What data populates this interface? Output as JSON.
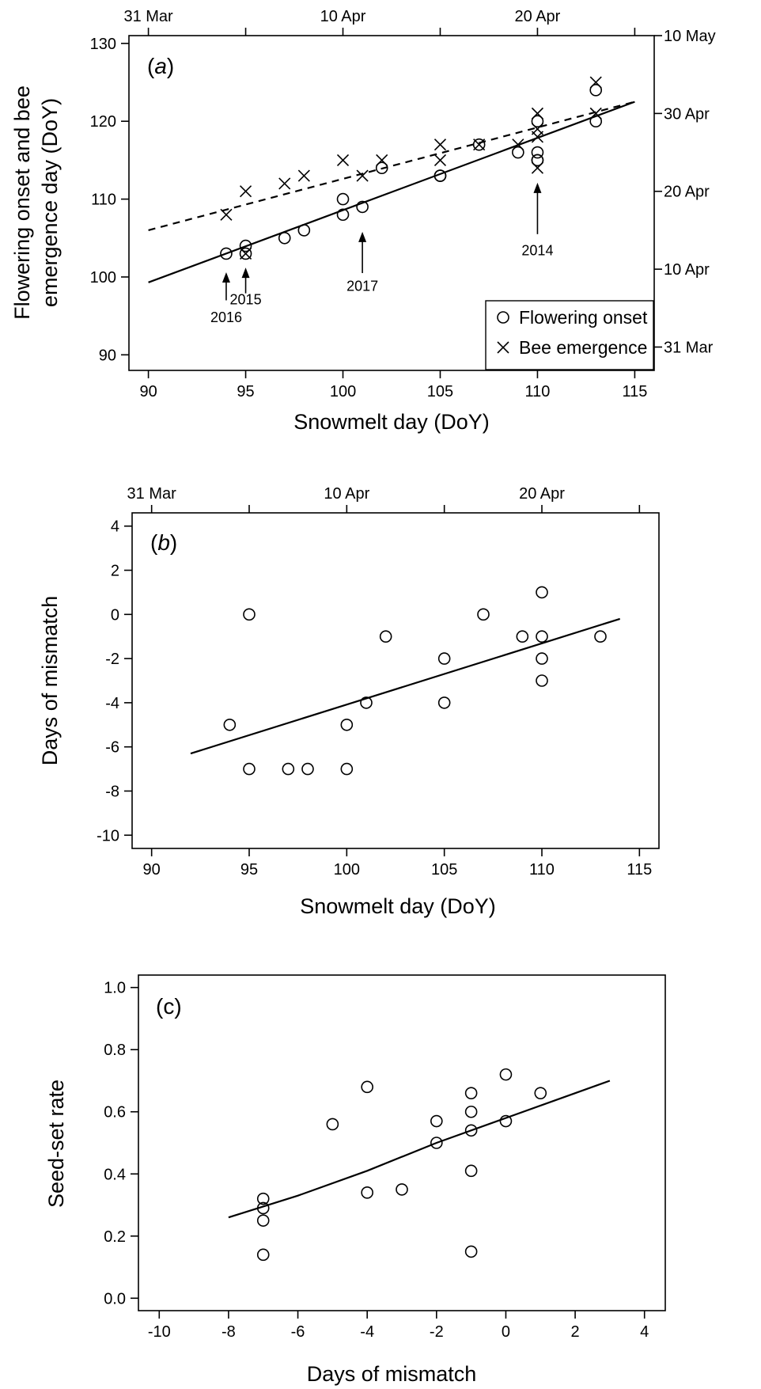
{
  "chart_data": [
    {
      "type": "scatter",
      "panel_label": "(a)",
      "panel_letter": "a",
      "xlabel": "Snowmelt day (DoY)",
      "ylabel": [
        "Flowering onset and bee",
        "emergence day (DoY)"
      ],
      "xlim": [
        89,
        116
      ],
      "ylim": [
        88,
        131
      ],
      "x_ticks": [
        90,
        95,
        100,
        105,
        110,
        115
      ],
      "y_ticks": [
        90,
        100,
        110,
        120,
        130
      ],
      "top_axis": {
        "ticks": [
          90,
          95,
          100,
          105,
          110,
          115
        ],
        "labels": [
          {
            "x": 90,
            "text": "31 Mar"
          },
          {
            "x": 100,
            "text": "10 Apr"
          },
          {
            "x": 110,
            "text": "20 Apr"
          }
        ]
      },
      "right_axis": {
        "ticks": [
          {
            "y": 91,
            "text": "31 Mar"
          },
          {
            "y": 101,
            "text": "10 Apr"
          },
          {
            "y": 111,
            "text": "20 Apr"
          },
          {
            "y": 121,
            "text": "30 Apr"
          },
          {
            "y": 131,
            "text": "10 May"
          }
        ]
      },
      "legend": {
        "position": "bottom-right",
        "entries": [
          "Flowering onset",
          "Bee emergence"
        ]
      },
      "series": [
        {
          "name": "Flowering onset",
          "marker": "circle",
          "x": [
            94,
            95,
            95,
            97,
            98,
            100,
            100,
            101,
            102,
            105,
            105,
            107,
            109,
            110,
            110,
            110,
            110,
            113,
            113
          ],
          "y": [
            103,
            104,
            103,
            105,
            106,
            108,
            110,
            109,
            114,
            113,
            113,
            117,
            116,
            115,
            116,
            120,
            115,
            120,
            124
          ]
        },
        {
          "name": "Bee emergence",
          "marker": "cross",
          "x": [
            94,
            95,
            95,
            97,
            98,
            100,
            101,
            102,
            105,
            105,
            107,
            109,
            110,
            110,
            110,
            110,
            113,
            113
          ],
          "y": [
            108,
            111,
            103,
            112,
            113,
            115,
            113,
            115,
            117,
            115,
            117,
            117,
            118,
            119,
            121,
            114,
            121,
            125
          ]
        }
      ],
      "fits": [
        {
          "series": "Flowering onset",
          "style": "solid",
          "x": [
            90,
            115
          ],
          "y": [
            99.3,
            122.5
          ]
        },
        {
          "series": "Bee emergence",
          "style": "dashed",
          "x": [
            90,
            115
          ],
          "y": [
            106,
            122.5
          ]
        }
      ],
      "annotations": [
        {
          "text": "2016",
          "x": 94,
          "y_tip": 100.6,
          "y_tail": 97,
          "label_y": 94.2
        },
        {
          "text": "2015",
          "x": 95,
          "y_tip": 101.2,
          "y_tail": 97.9,
          "label_y": 96.5
        },
        {
          "text": "2017",
          "x": 101,
          "y_tip": 105.8,
          "y_tail": 100.5,
          "label_y": 98.2
        },
        {
          "text": "2014",
          "x": 110,
          "y_tip": 112.1,
          "y_tail": 105.5,
          "label_y": 102.8
        }
      ]
    },
    {
      "type": "scatter",
      "panel_label": "(b)",
      "panel_letter": "b",
      "xlabel": "Snowmelt day (DoY)",
      "ylabel": [
        "Days of mismatch"
      ],
      "xlim": [
        89,
        116
      ],
      "ylim": [
        -10.6,
        4.6
      ],
      "x_ticks": [
        90,
        95,
        100,
        105,
        110,
        115
      ],
      "y_ticks": [
        -10,
        -8,
        -6,
        -4,
        -2,
        0,
        2,
        4
      ],
      "top_axis": {
        "ticks": [
          90,
          95,
          100,
          105,
          110,
          115
        ],
        "labels": [
          {
            "x": 90,
            "text": "31 Mar"
          },
          {
            "x": 100,
            "text": "10 Apr"
          },
          {
            "x": 110,
            "text": "20 Apr"
          }
        ]
      },
      "series": [
        {
          "name": "",
          "marker": "circle",
          "x": [
            94,
            95,
            95,
            97,
            98,
            100,
            100,
            101,
            102,
            105,
            105,
            107,
            109,
            110,
            110,
            110,
            110,
            113
          ],
          "y": [
            -5,
            0,
            -7,
            -7,
            -7,
            -5,
            -7,
            -4,
            -1,
            -2,
            -4,
            0,
            -1,
            1,
            -1,
            -2,
            -3,
            -1
          ]
        }
      ],
      "fits": [
        {
          "series": "",
          "style": "solid",
          "x": [
            92,
            114
          ],
          "y": [
            -6.3,
            -0.2
          ]
        }
      ]
    },
    {
      "type": "scatter",
      "panel_label": "(c)",
      "panel_letter": "",
      "xlabel": "Days of mismatch",
      "ylabel": [
        "Seed-set rate"
      ],
      "xlim": [
        -10.6,
        4.6
      ],
      "ylim": [
        -0.04,
        1.04
      ],
      "x_ticks": [
        -10,
        -8,
        -6,
        -4,
        -2,
        0,
        2,
        4
      ],
      "y_ticks": [
        0.0,
        0.2,
        0.4,
        0.6,
        0.8,
        1.0
      ],
      "y_tick_labels": [
        "0.0",
        "0.2",
        "0.4",
        "0.6",
        "0.8",
        "1.0"
      ],
      "series": [
        {
          "name": "",
          "marker": "circle",
          "x": [
            -7,
            -7,
            -7,
            -7,
            -5,
            -4,
            -4,
            -3,
            -2,
            -2,
            -1,
            -1,
            -1,
            -1,
            -1,
            0,
            0,
            1
          ],
          "y": [
            0.32,
            0.29,
            0.25,
            0.14,
            0.56,
            0.68,
            0.34,
            0.35,
            0.57,
            0.5,
            0.66,
            0.6,
            0.54,
            0.41,
            0.15,
            0.72,
            0.57,
            0.66
          ]
        }
      ],
      "fits": [
        {
          "series": "",
          "style": "solid",
          "x": [
            -8,
            -6,
            -4,
            -2,
            0,
            2,
            3
          ],
          "y": [
            0.26,
            0.33,
            0.41,
            0.5,
            0.58,
            0.66,
            0.7
          ]
        }
      ]
    }
  ]
}
